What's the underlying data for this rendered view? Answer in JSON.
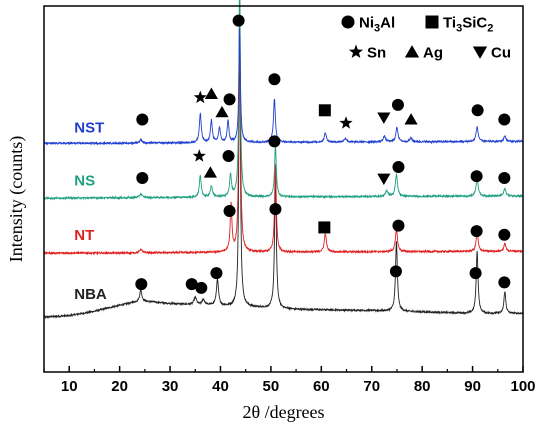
{
  "chart_data": {
    "type": "line",
    "xlabel": "2θ /degrees",
    "ylabel": "Intensity (counts)",
    "xlim": [
      5,
      100
    ],
    "ylim": [
      0,
      100
    ],
    "x_ticks": [
      10,
      20,
      30,
      40,
      50,
      60,
      70,
      80,
      90,
      100
    ],
    "y_ticks_labels": false,
    "legend": {
      "placement": "top-right",
      "entries": [
        {
          "marker": "circle",
          "parts": [
            {
              "t": "Ni"
            },
            {
              "t": "3",
              "sub": true
            },
            {
              "t": "Al"
            }
          ]
        },
        {
          "marker": "square",
          "parts": [
            {
              "t": "Ti"
            },
            {
              "t": "3",
              "sub": true
            },
            {
              "t": "SiC"
            },
            {
              "t": "2",
              "sub": true
            }
          ]
        },
        {
          "marker": "star",
          "parts": [
            {
              "t": "Sn"
            }
          ]
        },
        {
          "marker": "triangle-up",
          "parts": [
            {
              "t": "Ag"
            }
          ]
        },
        {
          "marker": "triangle-down",
          "parts": [
            {
              "t": "Cu"
            }
          ]
        }
      ]
    },
    "series": [
      {
        "name": "NBA",
        "color": "#222222",
        "baseline": 15,
        "points": [
          [
            5,
            15
          ],
          [
            10,
            15.4
          ],
          [
            15,
            16.6
          ],
          [
            18,
            17.6
          ],
          [
            22,
            18.8
          ],
          [
            24,
            19.4
          ],
          [
            27,
            19.1
          ],
          [
            30,
            18.7
          ],
          [
            33,
            18.5
          ],
          [
            36,
            18.3
          ],
          [
            39,
            18.2
          ],
          [
            41,
            18.0
          ],
          [
            42,
            17.9
          ],
          [
            45,
            17.8
          ],
          [
            50,
            17.4
          ],
          [
            55,
            17.1
          ],
          [
            60,
            17.0
          ],
          [
            65,
            16.9
          ],
          [
            70,
            16.8
          ],
          [
            75,
            16.6
          ],
          [
            80,
            16.4
          ],
          [
            85,
            16.2
          ],
          [
            90,
            16.0
          ],
          [
            95,
            16.0
          ],
          [
            100,
            16.0
          ]
        ],
        "peaks": [
          {
            "x": 24.2,
            "h": 3,
            "w": 0.25
          },
          {
            "x": 35.0,
            "h": 2,
            "w": 0.3
          },
          {
            "x": 36.6,
            "h": 1.5,
            "w": 0.3
          },
          {
            "x": 39.4,
            "h": 7,
            "w": 0.25
          },
          {
            "x": 43.8,
            "h": 78,
            "w": 0.18
          },
          {
            "x": 50.9,
            "h": 38,
            "w": 0.2
          },
          {
            "x": 74.9,
            "h": 19,
            "w": 0.22
          },
          {
            "x": 90.9,
            "h": 17,
            "w": 0.22
          },
          {
            "x": 96.4,
            "h": 6,
            "w": 0.22
          }
        ]
      },
      {
        "name": "NT",
        "color": "#e02020",
        "baseline": 32.5,
        "points": [
          [
            5,
            32.5
          ],
          [
            20,
            32.5
          ],
          [
            30,
            32.6
          ],
          [
            40,
            32.7
          ],
          [
            60,
            32.8
          ],
          [
            80,
            32.9
          ],
          [
            100,
            33.0
          ]
        ],
        "peaks": [
          {
            "x": 24.2,
            "h": 1,
            "w": 0.3
          },
          {
            "x": 42.1,
            "h": 13,
            "w": 0.2
          },
          {
            "x": 43.8,
            "h": 72,
            "w": 0.18
          },
          {
            "x": 50.9,
            "h": 24,
            "w": 0.2
          },
          {
            "x": 60.8,
            "h": 5,
            "w": 0.25
          },
          {
            "x": 74.9,
            "h": 6,
            "w": 0.25
          },
          {
            "x": 90.9,
            "h": 5,
            "w": 0.25
          },
          {
            "x": 96.4,
            "h": 2,
            "w": 0.25
          }
        ]
      },
      {
        "name": "NS",
        "color": "#20a080",
        "baseline": 47.5,
        "points": [
          [
            5,
            47.5
          ],
          [
            20,
            47.6
          ],
          [
            30,
            47.7
          ],
          [
            40,
            47.8
          ],
          [
            60,
            47.9
          ],
          [
            80,
            48.0
          ],
          [
            100,
            48.1
          ]
        ],
        "peaks": [
          {
            "x": 24.2,
            "h": 1,
            "w": 0.3
          },
          {
            "x": 36.0,
            "h": 6,
            "w": 0.22
          },
          {
            "x": 38.2,
            "h": 3,
            "w": 0.25
          },
          {
            "x": 42.0,
            "h": 6,
            "w": 0.22
          },
          {
            "x": 43.8,
            "h": 58,
            "w": 0.18
          },
          {
            "x": 50.9,
            "h": 14,
            "w": 0.2
          },
          {
            "x": 73.0,
            "h": 1.5,
            "w": 0.3
          },
          {
            "x": 74.9,
            "h": 6,
            "w": 0.25
          },
          {
            "x": 90.9,
            "h": 5,
            "w": 0.25
          },
          {
            "x": 96.4,
            "h": 2,
            "w": 0.25
          }
        ]
      },
      {
        "name": "NST",
        "color": "#2040d0",
        "baseline": 62.5,
        "points": [
          [
            5,
            62.5
          ],
          [
            20,
            62.5
          ],
          [
            30,
            62.6
          ],
          [
            40,
            62.7
          ],
          [
            60,
            62.8
          ],
          [
            80,
            62.9
          ],
          [
            100,
            63.0
          ]
        ],
        "peaks": [
          {
            "x": 24.2,
            "h": 1,
            "w": 0.3
          },
          {
            "x": 36.0,
            "h": 8,
            "w": 0.22
          },
          {
            "x": 38.2,
            "h": 6,
            "w": 0.22
          },
          {
            "x": 39.8,
            "h": 4,
            "w": 0.22
          },
          {
            "x": 41.5,
            "h": 6,
            "w": 0.2
          },
          {
            "x": 43.8,
            "h": 31,
            "w": 0.18
          },
          {
            "x": 50.7,
            "h": 12,
            "w": 0.22
          },
          {
            "x": 60.8,
            "h": 2.5,
            "w": 0.25
          },
          {
            "x": 64.8,
            "h": 1,
            "w": 0.3
          },
          {
            "x": 72.5,
            "h": 1.5,
            "w": 0.3
          },
          {
            "x": 75.0,
            "h": 4,
            "w": 0.25
          },
          {
            "x": 77.8,
            "h": 1,
            "w": 0.3
          },
          {
            "x": 90.9,
            "h": 4,
            "w": 0.25
          },
          {
            "x": 96.4,
            "h": 1.5,
            "w": 0.25
          }
        ]
      }
    ],
    "series_label_pos": [
      {
        "name": "NBA",
        "x": 11,
        "y": 20
      },
      {
        "name": "NT",
        "x": 11,
        "y": 36
      },
      {
        "name": "NS",
        "x": 11,
        "y": 51
      },
      {
        "name": "NST",
        "x": 11,
        "y": 65.5
      }
    ],
    "annotations": [
      {
        "m": "circle",
        "x": 24.5,
        "y": 69
      },
      {
        "m": "star",
        "x": 36,
        "y": 75
      },
      {
        "m": "triangle-up",
        "x": 38.2,
        "y": 76
      },
      {
        "m": "triangle-up",
        "x": 40.3,
        "y": 71
      },
      {
        "m": "circle",
        "x": 41.8,
        "y": 74.5
      },
      {
        "m": "circle",
        "x": 43.6,
        "y": 96
      },
      {
        "m": "circle",
        "x": 50.7,
        "y": 80
      },
      {
        "m": "square",
        "x": 60.7,
        "y": 71.5
      },
      {
        "m": "star",
        "x": 64.9,
        "y": 68
      },
      {
        "m": "triangle-down",
        "x": 72.4,
        "y": 69.5
      },
      {
        "m": "circle",
        "x": 75.2,
        "y": 73
      },
      {
        "m": "triangle-up",
        "x": 77.8,
        "y": 69
      },
      {
        "m": "circle",
        "x": 91.0,
        "y": 71.5
      },
      {
        "m": "circle",
        "x": 96.3,
        "y": 69
      },
      {
        "m": "circle",
        "x": 24.5,
        "y": 53
      },
      {
        "m": "star",
        "x": 35.8,
        "y": 59
      },
      {
        "m": "triangle-up",
        "x": 38.0,
        "y": 54.5
      },
      {
        "m": "circle",
        "x": 41.6,
        "y": 59
      },
      {
        "m": "circle",
        "x": 50.7,
        "y": 63
      },
      {
        "m": "triangle-down",
        "x": 72.4,
        "y": 52.8
      },
      {
        "m": "circle",
        "x": 75.3,
        "y": 56
      },
      {
        "m": "circle",
        "x": 90.8,
        "y": 53.5
      },
      {
        "m": "circle",
        "x": 96.3,
        "y": 53
      },
      {
        "m": "circle",
        "x": 41.8,
        "y": 44
      },
      {
        "m": "circle",
        "x": 50.9,
        "y": 44.5
      },
      {
        "m": "square",
        "x": 60.6,
        "y": 39.5
      },
      {
        "m": "circle",
        "x": 75.3,
        "y": 40
      },
      {
        "m": "circle",
        "x": 90.8,
        "y": 38.5
      },
      {
        "m": "circle",
        "x": 96.3,
        "y": 37.5
      },
      {
        "m": "circle",
        "x": 24.3,
        "y": 24
      },
      {
        "m": "circle",
        "x": 34.3,
        "y": 24
      },
      {
        "m": "circle",
        "x": 36.2,
        "y": 23
      },
      {
        "m": "circle",
        "x": 39.2,
        "y": 27
      },
      {
        "m": "circle",
        "x": 74.8,
        "y": 27.5
      },
      {
        "m": "circle",
        "x": 90.6,
        "y": 27
      },
      {
        "m": "circle",
        "x": 96.3,
        "y": 24.5
      }
    ]
  }
}
